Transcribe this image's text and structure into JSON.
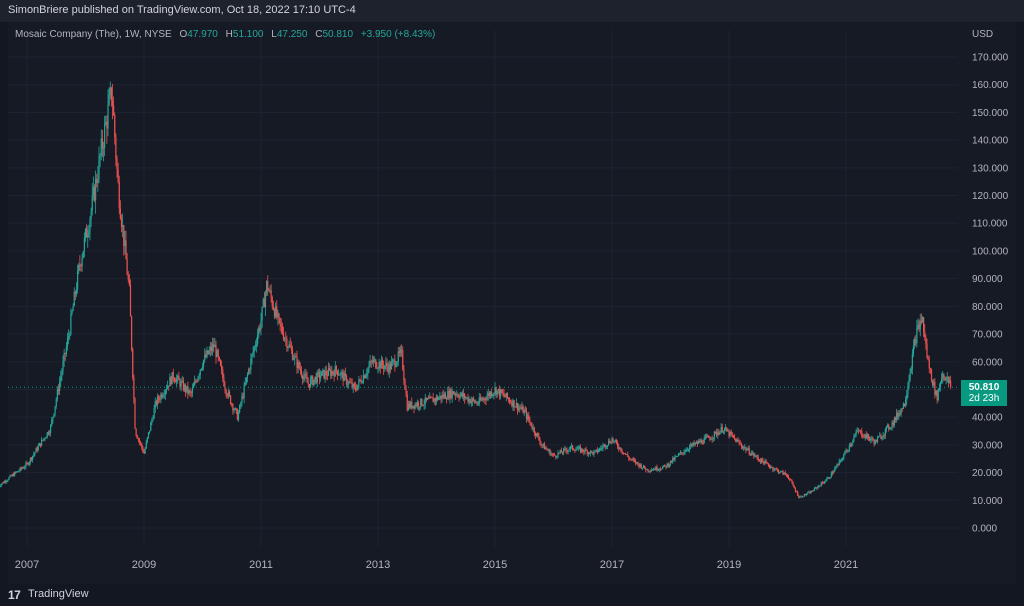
{
  "header": {
    "published_text": "SimonBriere published on TradingView.com, Oct 18, 2022 17:10 UTC-4"
  },
  "legend": {
    "symbol": "Mosaic Company (The), 1W, NYSE",
    "o_label": "O",
    "o_value": "47.970",
    "h_label": "H",
    "h_value": "51.100",
    "l_label": "L",
    "l_value": "47.250",
    "c_label": "C",
    "c_value": "50.810",
    "change": "+3.950 (+8.43%)"
  },
  "price_tag": {
    "price": "50.810",
    "countdown": "2d 23h"
  },
  "footer": {
    "logo": "17",
    "brand": "TradingView"
  },
  "colors": {
    "up": "#26a69a",
    "down": "#ef5350",
    "background": "#131722",
    "grid": "#1f2330",
    "tag": "#089981"
  },
  "chart_data": {
    "type": "candlestick",
    "currency_label": "USD",
    "y_axis_ticks": [
      "170.000",
      "160.000",
      "150.000",
      "140.000",
      "130.000",
      "120.000",
      "110.000",
      "100.000",
      "90.000",
      "80.000",
      "70.000",
      "60.000",
      "50.000",
      "40.000",
      "30.000",
      "20.000",
      "10.000",
      "0.000"
    ],
    "x_axis_ticks": [
      "2007",
      "2009",
      "2011",
      "2013",
      "2015",
      "2017",
      "2019",
      "2021"
    ],
    "ylim": [
      -5,
      175
    ],
    "last_close": 50.81,
    "series": [
      {
        "date": "2006.5",
        "close": 15
      },
      {
        "date": "2007.0",
        "close": 23
      },
      {
        "date": "2007.4",
        "close": 36
      },
      {
        "date": "2007.7",
        "close": 68
      },
      {
        "date": "2007.9",
        "close": 95
      },
      {
        "date": "2008.1",
        "close": 115
      },
      {
        "date": "2008.3",
        "close": 140
      },
      {
        "date": "2008.45",
        "close": 158
      },
      {
        "date": "2008.55",
        "close": 125
      },
      {
        "date": "2008.75",
        "close": 85
      },
      {
        "date": "2008.85",
        "close": 35
      },
      {
        "date": "2009.0",
        "close": 27
      },
      {
        "date": "2009.2",
        "close": 45
      },
      {
        "date": "2009.5",
        "close": 55
      },
      {
        "date": "2009.8",
        "close": 48
      },
      {
        "date": "2010.0",
        "close": 60
      },
      {
        "date": "2010.2",
        "close": 66
      },
      {
        "date": "2010.4",
        "close": 50
      },
      {
        "date": "2010.6",
        "close": 40
      },
      {
        "date": "2010.8",
        "close": 58
      },
      {
        "date": "2011.0",
        "close": 75
      },
      {
        "date": "2011.1",
        "close": 88
      },
      {
        "date": "2011.3",
        "close": 74
      },
      {
        "date": "2011.6",
        "close": 60
      },
      {
        "date": "2011.8",
        "close": 52
      },
      {
        "date": "2012.0",
        "close": 55
      },
      {
        "date": "2012.3",
        "close": 57
      },
      {
        "date": "2012.6",
        "close": 50
      },
      {
        "date": "2012.9",
        "close": 60
      },
      {
        "date": "2013.2",
        "close": 58
      },
      {
        "date": "2013.4",
        "close": 63
      },
      {
        "date": "2013.5",
        "close": 44
      },
      {
        "date": "2013.9",
        "close": 46
      },
      {
        "date": "2014.3",
        "close": 49
      },
      {
        "date": "2014.7",
        "close": 45
      },
      {
        "date": "2015.0",
        "close": 50
      },
      {
        "date": "2015.2",
        "close": 47
      },
      {
        "date": "2015.5",
        "close": 42
      },
      {
        "date": "2015.8",
        "close": 30
      },
      {
        "date": "2016.0",
        "close": 26
      },
      {
        "date": "2016.3",
        "close": 29
      },
      {
        "date": "2016.7",
        "close": 27
      },
      {
        "date": "2017.0",
        "close": 32
      },
      {
        "date": "2017.3",
        "close": 25
      },
      {
        "date": "2017.6",
        "close": 21
      },
      {
        "date": "2017.9",
        "close": 22
      },
      {
        "date": "2018.3",
        "close": 29
      },
      {
        "date": "2018.7",
        "close": 33
      },
      {
        "date": "2018.9",
        "close": 36
      },
      {
        "date": "2019.2",
        "close": 30
      },
      {
        "date": "2019.5",
        "close": 25
      },
      {
        "date": "2019.8",
        "close": 21
      },
      {
        "date": "2020.0",
        "close": 19
      },
      {
        "date": "2020.2",
        "close": 11
      },
      {
        "date": "2020.4",
        "close": 13
      },
      {
        "date": "2020.7",
        "close": 18
      },
      {
        "date": "2020.9",
        "close": 24
      },
      {
        "date": "2021.2",
        "close": 35
      },
      {
        "date": "2021.5",
        "close": 31
      },
      {
        "date": "2021.8",
        "close": 38
      },
      {
        "date": "2022.0",
        "close": 45
      },
      {
        "date": "2022.2",
        "close": 70
      },
      {
        "date": "2022.3",
        "close": 76
      },
      {
        "date": "2022.4",
        "close": 60
      },
      {
        "date": "2022.55",
        "close": 47
      },
      {
        "date": "2022.65",
        "close": 56
      },
      {
        "date": "2022.8",
        "close": 50.81
      }
    ]
  }
}
